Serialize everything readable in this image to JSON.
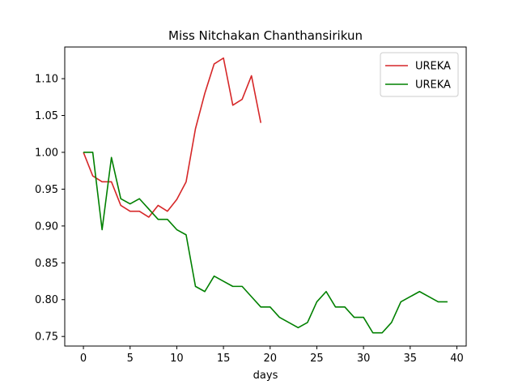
{
  "chart_data": {
    "type": "line",
    "title": "Miss Nitchakan Chanthansirikun",
    "xlabel": "days",
    "ylabel": "",
    "xlim": [
      -2,
      41
    ],
    "ylim": [
      0.737,
      1.143
    ],
    "x_ticks": [
      0,
      5,
      10,
      15,
      20,
      25,
      30,
      35,
      40
    ],
    "y_ticks": [
      0.75,
      0.8,
      0.85,
      0.9,
      0.95,
      1.0,
      1.05,
      1.1
    ],
    "y_tick_labels": [
      "0.75",
      "0.80",
      "0.85",
      "0.90",
      "0.95",
      "1.00",
      "1.05",
      "1.10"
    ],
    "grid": false,
    "legend_position": "top-right",
    "series": [
      {
        "name": "UREKA",
        "color": "#d62728",
        "x": [
          0,
          1,
          2,
          3,
          4,
          5,
          6,
          7,
          8,
          9,
          10,
          11,
          12,
          13,
          14,
          15,
          16,
          17,
          18,
          19
        ],
        "values": [
          1.0,
          0.968,
          0.96,
          0.96,
          0.928,
          0.92,
          0.92,
          0.912,
          0.928,
          0.92,
          0.936,
          0.96,
          1.032,
          1.08,
          1.12,
          1.128,
          1.064,
          1.072,
          1.104,
          1.04
        ]
      },
      {
        "name": "UREKA",
        "color": "#008000",
        "x": [
          0,
          1,
          2,
          3,
          4,
          5,
          6,
          7,
          8,
          9,
          10,
          11,
          12,
          13,
          14,
          15,
          16,
          17,
          18,
          19,
          20,
          21,
          22,
          23,
          24,
          25,
          26,
          27,
          28,
          29,
          30,
          31,
          32,
          33,
          34,
          35,
          36,
          37,
          38,
          39
        ],
        "values": [
          1.0,
          1.0,
          0.895,
          0.993,
          0.937,
          0.93,
          0.937,
          0.923,
          0.909,
          0.909,
          0.895,
          0.888,
          0.818,
          0.811,
          0.832,
          0.825,
          0.818,
          0.818,
          0.804,
          0.79,
          0.79,
          0.776,
          0.769,
          0.762,
          0.769,
          0.797,
          0.811,
          0.79,
          0.79,
          0.776,
          0.776,
          0.755,
          0.755,
          0.769,
          0.797,
          0.804,
          0.811,
          0.804,
          0.797,
          0.797
        ]
      }
    ]
  }
}
